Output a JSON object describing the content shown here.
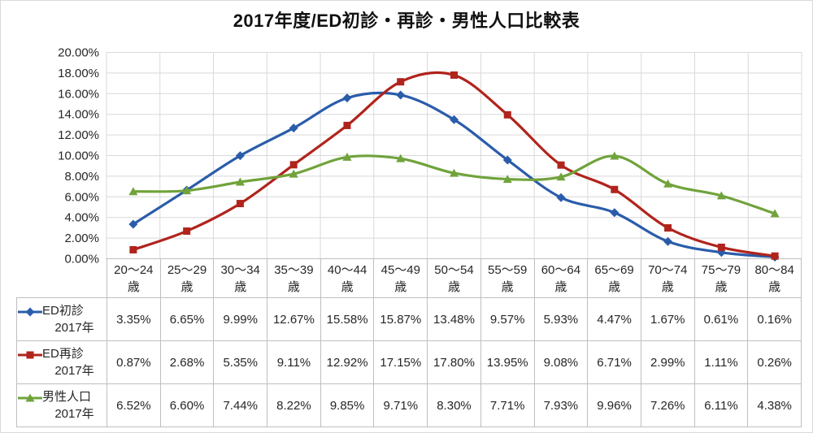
{
  "chart_data": {
    "type": "line",
    "title": "2017年度/ED初診・再診・男性人口比較表",
    "smoothed_lines": true,
    "grid": true,
    "legend_position": "left-of-data-table",
    "ylim": [
      0,
      20
    ],
    "ytick_labels": [
      "0.00%",
      "2.00%",
      "4.00%",
      "6.00%",
      "8.00%",
      "10.00%",
      "12.00%",
      "14.00%",
      "16.00%",
      "18.00%",
      "20.00%"
    ],
    "value_suffix": "%",
    "category_unit": "歳",
    "categories": [
      "20〜24",
      "25〜29",
      "30〜34",
      "35〜39",
      "40〜44",
      "45〜49",
      "50〜54",
      "55〜59",
      "60〜64",
      "65〜69",
      "70〜74",
      "75〜79",
      "80〜84"
    ],
    "series": [
      {
        "id": "ed-first-visit",
        "name": "ED初診",
        "year": "2017年",
        "color": "#2A5CAA",
        "marker": "diamond",
        "values": [
          3.35,
          6.65,
          9.99,
          12.67,
          15.58,
          15.87,
          13.48,
          9.57,
          5.93,
          4.47,
          1.67,
          0.61,
          0.16
        ]
      },
      {
        "id": "ed-revisit",
        "name": "ED再診",
        "year": "2017年",
        "color": "#B0241C",
        "marker": "square",
        "values": [
          0.87,
          2.68,
          5.35,
          9.11,
          12.92,
          17.15,
          17.8,
          13.95,
          9.08,
          6.71,
          2.99,
          1.11,
          0.26
        ]
      },
      {
        "id": "male-population",
        "name": "男性人口",
        "year": "2017年",
        "color": "#70A33B",
        "marker": "triangle",
        "values": [
          6.52,
          6.6,
          7.44,
          8.22,
          9.85,
          9.71,
          8.3,
          7.71,
          7.93,
          9.96,
          7.26,
          6.11,
          4.38
        ]
      }
    ],
    "colors": {
      "gridline": "#D9D9D9",
      "table_border": "#BFBFBF",
      "text": "#262626"
    }
  }
}
